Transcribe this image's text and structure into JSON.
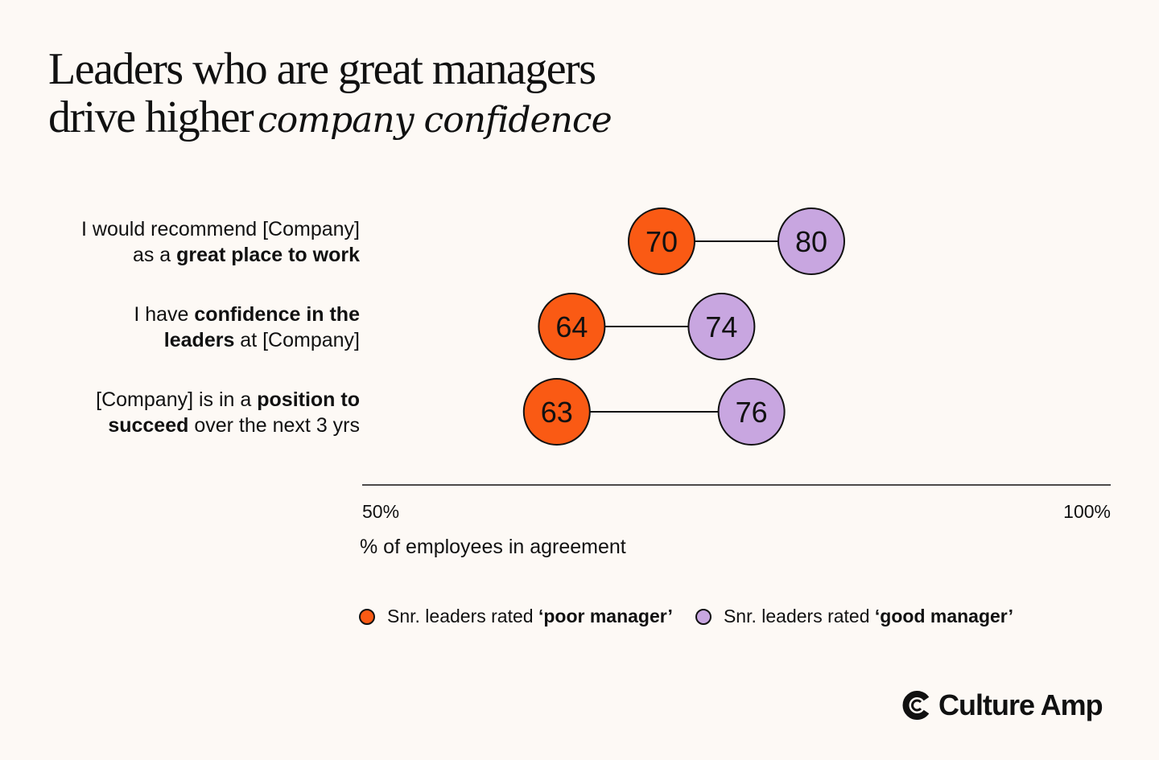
{
  "title": {
    "line1": "Leaders who are great managers",
    "line2_plain": "drive higher",
    "line2_script": "company confidence"
  },
  "colors": {
    "poor": "#fa5a14",
    "good": "#c8a6e0",
    "background": "#fdf9f5",
    "ink": "#111111"
  },
  "rows": [
    {
      "parts": [
        {
          "t": "I would recommend [Company]",
          "b": false,
          "br": true
        },
        {
          "t": "as a ",
          "b": false
        },
        {
          "t": "great place to work",
          "b": true
        }
      ]
    },
    {
      "parts": [
        {
          "t": "I have ",
          "b": false
        },
        {
          "t": "confidence in the",
          "b": true,
          "br": true
        },
        {
          "t": "leaders",
          "b": true
        },
        {
          "t": " at [Company]",
          "b": false
        }
      ]
    },
    {
      "parts": [
        {
          "t": "[Company] is in a ",
          "b": false
        },
        {
          "t": "position to",
          "b": true,
          "br": true
        },
        {
          "t": "succeed",
          "b": true
        },
        {
          "t": " over the next 3 yrs",
          "b": false
        }
      ]
    }
  ],
  "chart_data": {
    "type": "dumbbell",
    "categories": [
      "I would recommend [Company] as a great place to work",
      "I have confidence in the leaders at [Company]",
      "[Company] is in a position to succeed over the next 3 yrs"
    ],
    "series": [
      {
        "name": "Snr. leaders rated ‘poor manager’",
        "color": "#fa5a14",
        "values": [
          70,
          64,
          63
        ]
      },
      {
        "name": "Snr. leaders rated ‘good manager’",
        "color": "#c8a6e0",
        "values": [
          80,
          74,
          76
        ]
      }
    ],
    "xlim": [
      50,
      100
    ],
    "xticks": [
      "50%",
      "100%"
    ],
    "xlabel": "% of employees in agreement",
    "legend_position": "bottom"
  },
  "legend": {
    "poor_prefix": "Snr. leaders rated ",
    "poor_bold": "‘poor manager’",
    "good_prefix": "Snr. leaders rated ",
    "good_bold": "‘good manager’"
  },
  "brand": {
    "name": "Culture Amp",
    "icon": "culture-amp-logo-icon"
  }
}
